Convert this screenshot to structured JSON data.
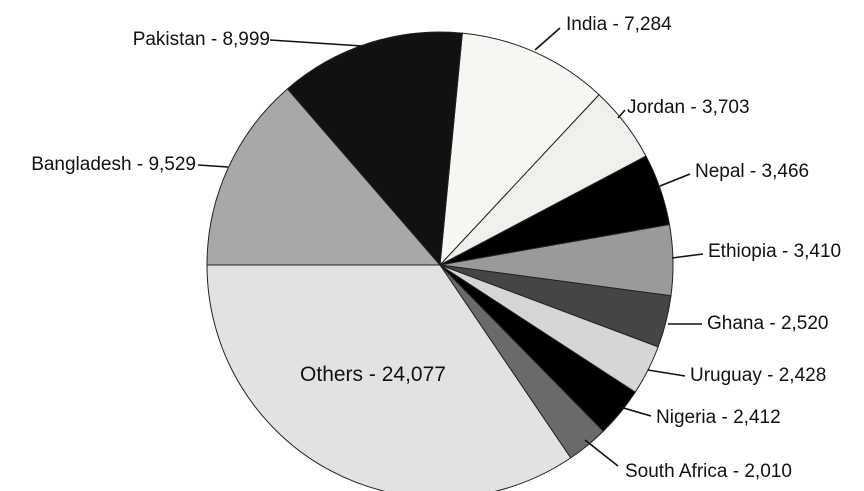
{
  "chart_data": {
    "type": "pie",
    "categories": [
      "India",
      "Jordan",
      "Nepal",
      "Ethiopia",
      "Ghana",
      "Uruguay",
      "Nigeria",
      "South Africa",
      "Others",
      "Bangladesh",
      "Pakistan"
    ],
    "values": [
      7284,
      3703,
      3466,
      3410,
      2520,
      2428,
      2412,
      2010,
      24077,
      9529,
      8999
    ],
    "value_labels": [
      "7,284",
      "3,703",
      "3,466",
      "3,410",
      "2,520",
      "2,428",
      "2,412",
      "2,010",
      "24,077",
      "9,529",
      "8,999"
    ],
    "label_separator": " - ",
    "colors": [
      "#f6f6f2",
      "#efefeb",
      "#000000",
      "#9a9a9a",
      "#454545",
      "#d6d6d6",
      "#000000",
      "#6a6a6a",
      "#e2e2e2",
      "#a8a8a8",
      "#111111"
    ]
  }
}
